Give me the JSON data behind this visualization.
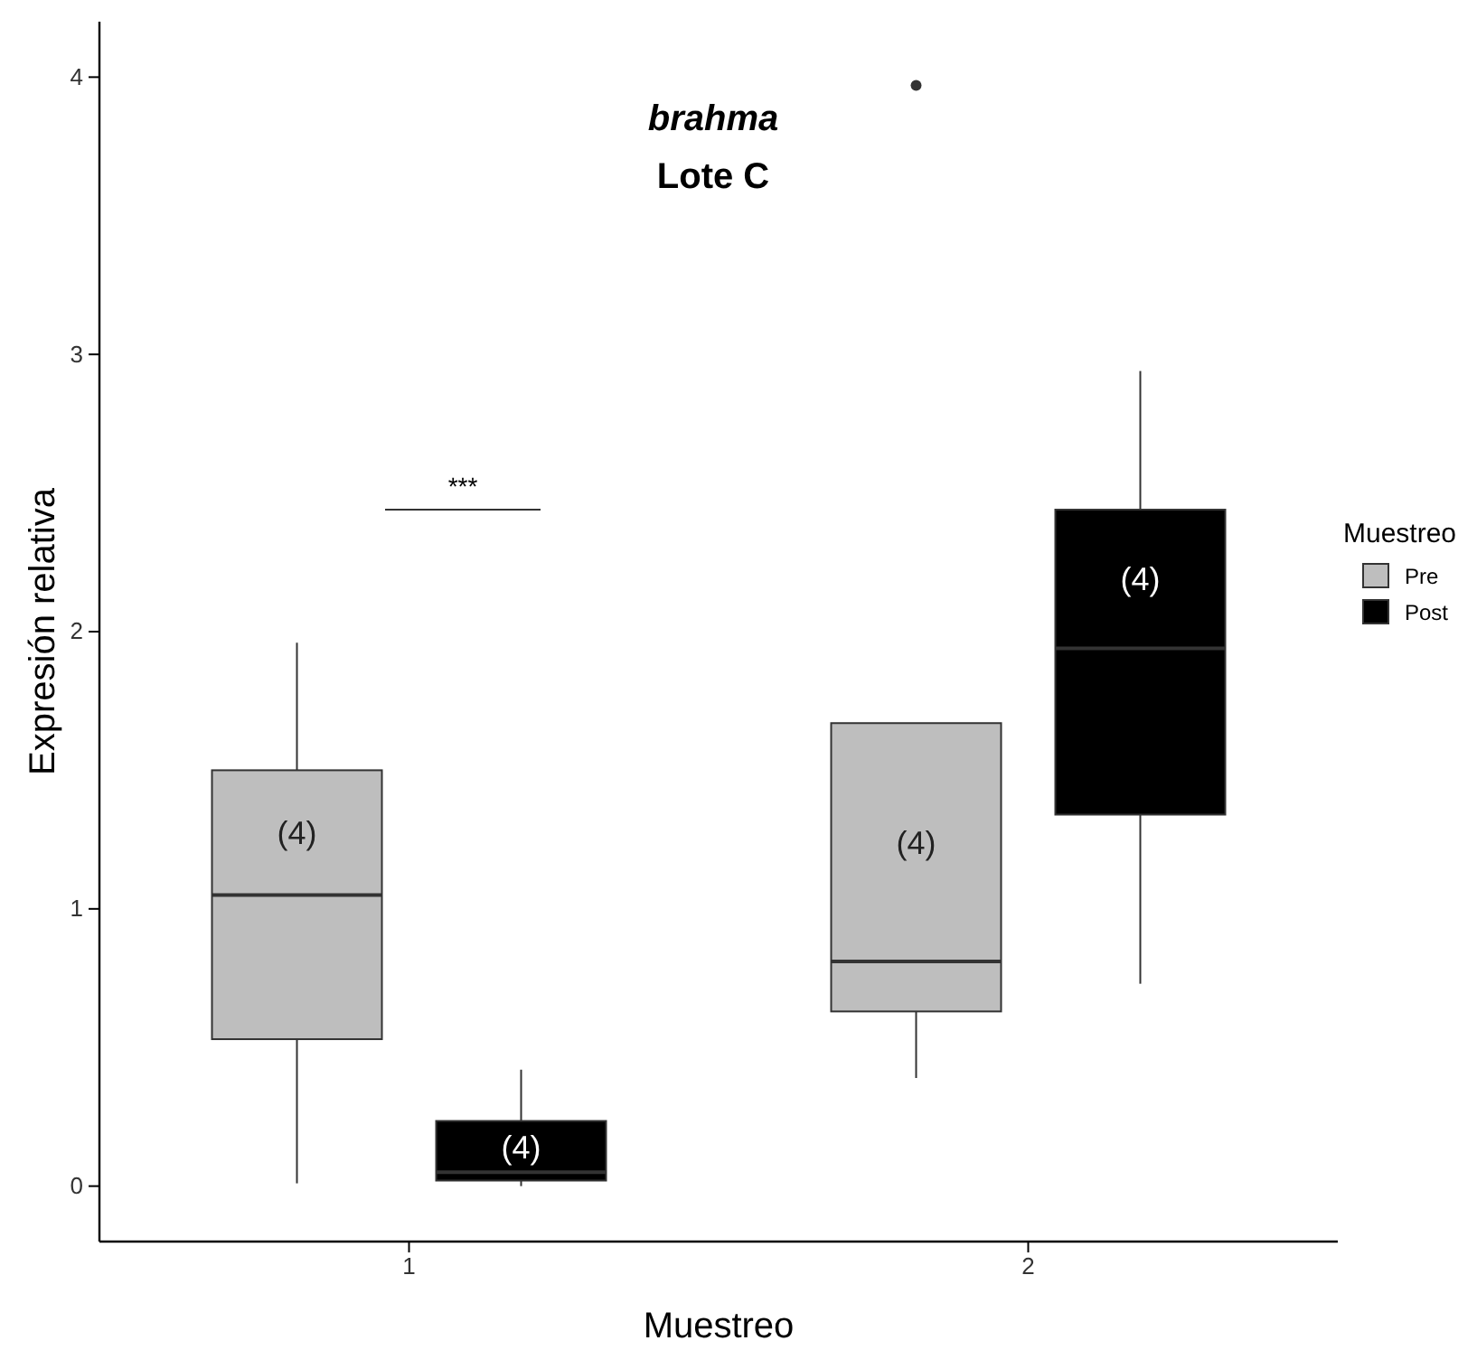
{
  "chart_data": {
    "type": "box",
    "title": "brahma",
    "subtitle": "Lote C",
    "xlabel": "Muestreo",
    "ylabel": "Expresión relativa",
    "legend_title": "Muestreo",
    "legend": "right",
    "categories": [
      "1",
      "2"
    ],
    "ylim": [
      -0.2,
      4.2
    ],
    "yticks": [
      0,
      1,
      2,
      3,
      4
    ],
    "grid": false,
    "series": [
      {
        "name": "Pre",
        "color": "#bebebe",
        "value_labels": [
          "(4)",
          "(4)"
        ],
        "boxes": [
          {
            "low": 0.01,
            "q1": 0.53,
            "median": 1.05,
            "q3": 1.5,
            "high": 1.96
          },
          {
            "low": 0.39,
            "q1": 0.63,
            "median": 0.81,
            "q3": 1.67,
            "high": 1.67,
            "outliers": [
              3.97
            ]
          }
        ]
      },
      {
        "name": "Post",
        "color": "#000000",
        "value_labels": [
          "(4)",
          "(4)"
        ],
        "boxes": [
          {
            "low": 0.0,
            "q1": 0.02,
            "median": 0.05,
            "q3": 0.235,
            "high": 0.42
          },
          {
            "low": 0.73,
            "q1": 1.34,
            "median": 1.94,
            "q3": 2.44,
            "high": 2.94
          }
        ]
      }
    ],
    "annotations": [
      "***"
    ]
  }
}
